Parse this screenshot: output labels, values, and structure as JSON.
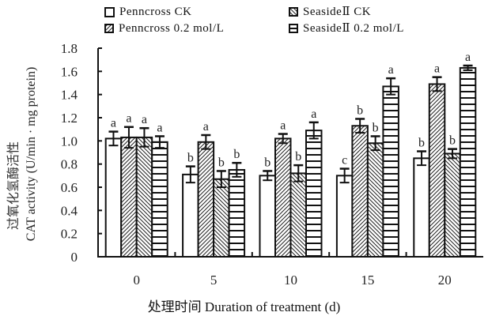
{
  "chart_data": {
    "type": "bar",
    "title": "",
    "xlabel": "处理时间 Duration of treatment (d)",
    "ylabel_cn": "过氧化氢酶活性",
    "ylabel": "CAT activity (U/min · mg protein)",
    "categories": [
      "0",
      "5",
      "10",
      "15",
      "20"
    ],
    "ylim": [
      0,
      1.8
    ],
    "yticks": [
      "0",
      "0.2",
      "0.4",
      "0.6",
      "0.8",
      "1.0",
      "1.2",
      "1.4",
      "1.6",
      "1.8"
    ],
    "grid": false,
    "legend_position": "top",
    "series": [
      {
        "name": "Penncross CK",
        "pattern": "empty",
        "values": [
          1.02,
          0.71,
          0.7,
          0.7,
          0.85
        ],
        "errors": [
          0.06,
          0.07,
          0.04,
          0.06,
          0.06
        ],
        "letters": [
          "a",
          "b",
          "b",
          "c",
          "b"
        ]
      },
      {
        "name": "Penncross 0.2 mol/L",
        "pattern": "diagonal",
        "values": [
          1.03,
          0.99,
          1.02,
          1.13,
          1.49
        ],
        "errors": [
          0.09,
          0.06,
          0.04,
          0.06,
          0.06
        ],
        "letters": [
          "a",
          "a",
          "a",
          "b",
          "a"
        ]
      },
      {
        "name": "SeasideⅡ CK",
        "pattern": "back-diagonal",
        "values": [
          1.03,
          0.67,
          0.72,
          0.98,
          0.89
        ],
        "errors": [
          0.08,
          0.07,
          0.07,
          0.06,
          0.04
        ],
        "letters": [
          "a",
          "b",
          "b",
          "b",
          "b"
        ]
      },
      {
        "name": "SeasideⅡ 0.2 mol/L",
        "pattern": "horizontal",
        "values": [
          0.99,
          0.75,
          1.09,
          1.47,
          1.63
        ],
        "errors": [
          0.05,
          0.06,
          0.07,
          0.07,
          0.02
        ],
        "letters": [
          "a",
          "b",
          "a",
          "a",
          "a"
        ]
      }
    ]
  }
}
